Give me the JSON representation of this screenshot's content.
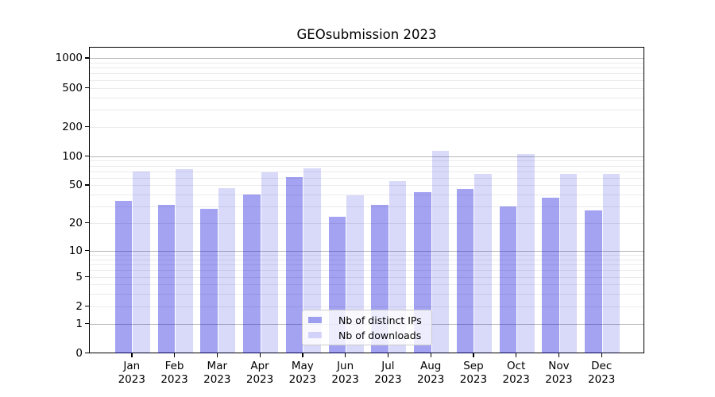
{
  "figure": {
    "title": "GEOsubmission 2023"
  },
  "legend": {
    "items": [
      {
        "label": "Nb of distinct IPs",
        "color": "rgba(0,0,219,0.36)"
      },
      {
        "label": "Nb of downloads",
        "color": "rgba(0,0,219,0.15)"
      }
    ]
  },
  "chart_data": {
    "type": "bar",
    "title": "GEOsubmission 2023",
    "categories": [
      "Jan 2023",
      "Feb 2023",
      "Mar 2023",
      "Apr 2023",
      "May 2023",
      "Jun 2023",
      "Jul 2023",
      "Aug 2023",
      "Sep 2023",
      "Oct 2023",
      "Nov 2023",
      "Dec 2023"
    ],
    "month_line1": [
      "Jan",
      "Feb",
      "Mar",
      "Apr",
      "May",
      "Jun",
      "Jul",
      "Aug",
      "Sep",
      "Oct",
      "Nov",
      "Dec"
    ],
    "month_line2": "2023",
    "series": [
      {
        "name": "Nb of distinct IPs",
        "color": "rgba(0,0,219,0.36)",
        "values": [
          35,
          32,
          29,
          41,
          62,
          24,
          32,
          43,
          47,
          31,
          38,
          28
        ]
      },
      {
        "name": "Nb of downloads",
        "color": "rgba(0,0,219,0.15)",
        "values": [
          71,
          75,
          48,
          69,
          76,
          40,
          56,
          115,
          67,
          107,
          67,
          67
        ]
      }
    ],
    "xlabel": "",
    "ylabel": "",
    "yscale": "log1p",
    "ylim": [
      0,
      1300
    ],
    "yticks_labeled": [
      0,
      1,
      2,
      5,
      10,
      20,
      50,
      100,
      200,
      500,
      1000
    ],
    "ygrid_major": [
      1,
      10,
      100,
      1000
    ],
    "ygrid_minor": [
      2,
      3,
      4,
      5,
      6,
      7,
      8,
      9,
      20,
      30,
      40,
      50,
      60,
      70,
      80,
      90,
      200,
      300,
      400,
      500,
      600,
      700,
      800,
      900
    ],
    "grid": true,
    "legend_position": "inside lower-center"
  },
  "colors": {
    "background": "#ffffff",
    "bar_distinct_ips": "rgba(0,0,219,0.36)",
    "bar_downloads": "rgba(0,0,219,0.15)",
    "grid_major": "#b7b7b7",
    "grid_minor": "#ebebeb",
    "axis": "#000000",
    "text": "#000000"
  }
}
